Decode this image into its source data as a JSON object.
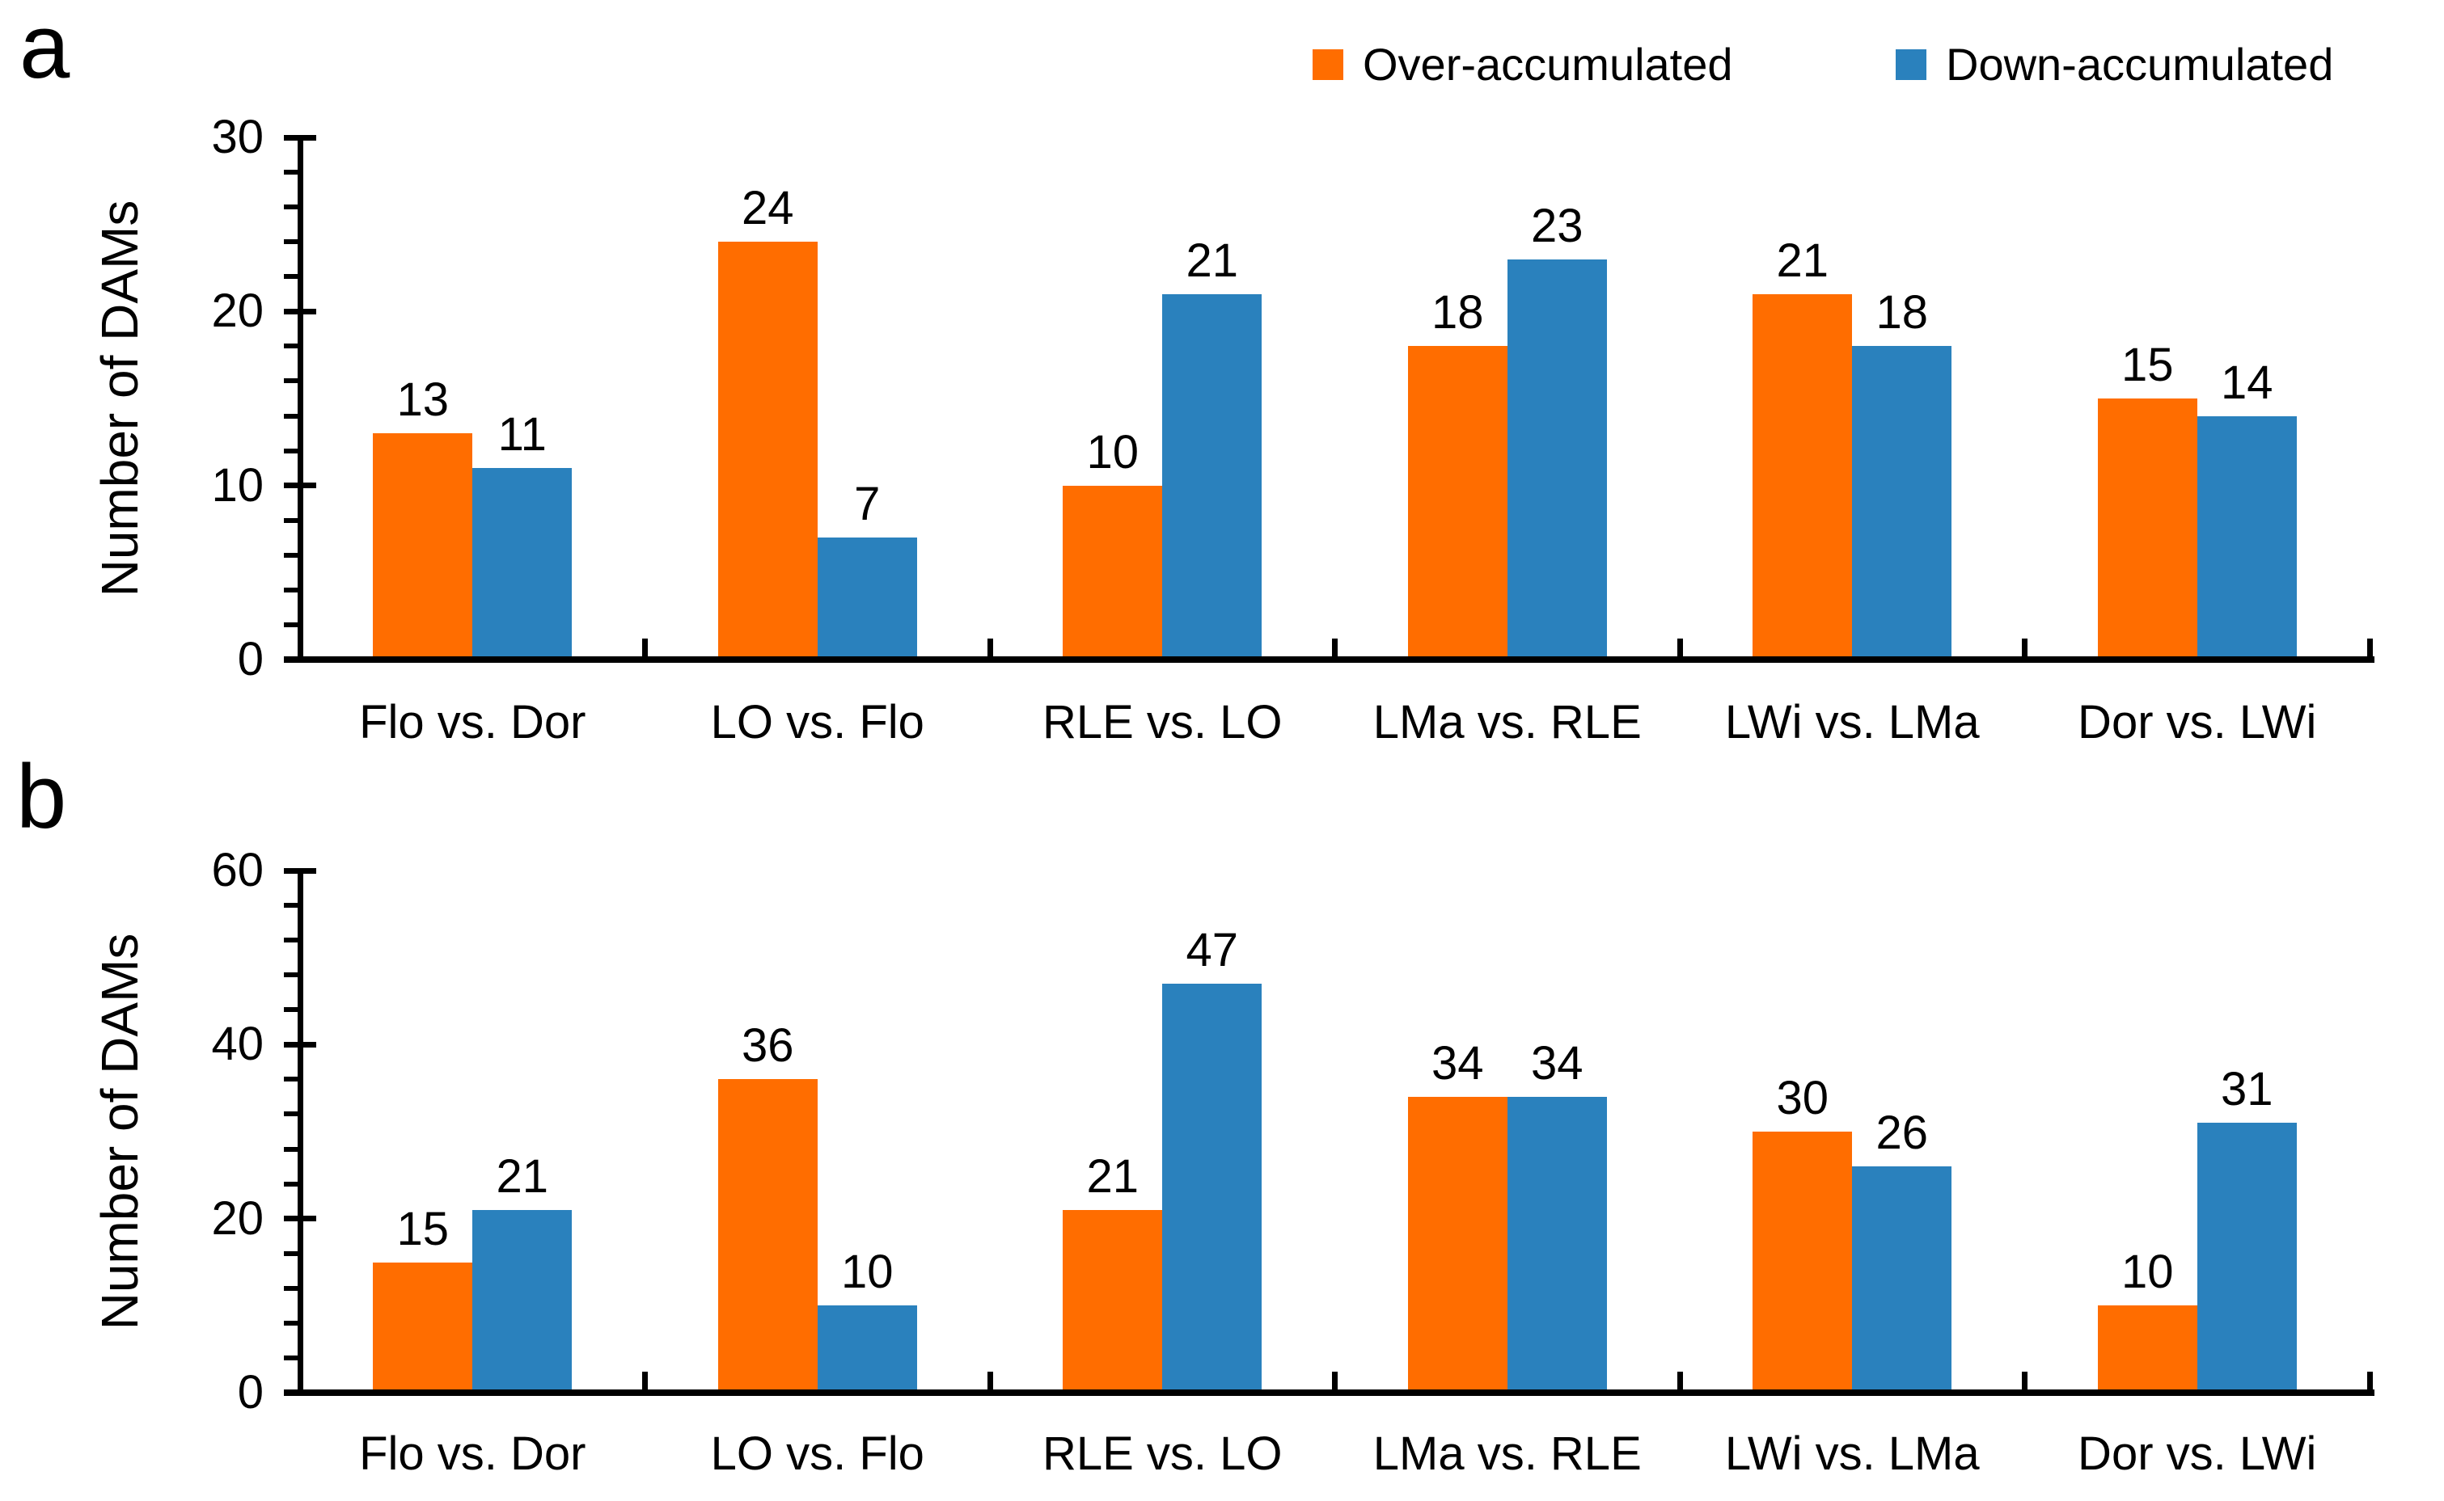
{
  "panels": [
    {
      "letter": "a"
    },
    {
      "letter": "b"
    }
  ],
  "legend": {
    "items": [
      {
        "label": "Over-accumulated",
        "color": "#FF6D00"
      },
      {
        "label": "Down-accumulated",
        "color": "#2A81BD"
      }
    ]
  },
  "chart_data": [
    {
      "id": "panel-a",
      "type": "bar",
      "title": "",
      "xlabel": "",
      "ylabel": "Number of DAMs",
      "categories": [
        "Flo vs. Dor",
        "LO vs. Flo",
        "RLE vs. LO",
        "LMa vs. RLE",
        "LWi vs. LMa",
        "Dor vs. LWi"
      ],
      "series": [
        {
          "name": "Over-accumulated",
          "color": "#FF6D00",
          "values": [
            13,
            24,
            10,
            18,
            21,
            15
          ]
        },
        {
          "name": "Down-accumulated",
          "color": "#2A81BD",
          "values": [
            11,
            7,
            21,
            23,
            18,
            14
          ]
        }
      ],
      "ylim": [
        0,
        30
      ],
      "y_major_ticks": [
        0,
        10,
        20,
        30
      ],
      "y_minor_interval": 2,
      "grid": false,
      "data_labels": true,
      "legend_position": "top-right"
    },
    {
      "id": "panel-b",
      "type": "bar",
      "title": "",
      "xlabel": "",
      "ylabel": "Number of DAMs",
      "categories": [
        "Flo vs. Dor",
        "LO vs. Flo",
        "RLE vs. LO",
        "LMa vs. RLE",
        "LWi vs. LMa",
        "Dor vs. LWi"
      ],
      "series": [
        {
          "name": "Over-accumulated",
          "color": "#FF6D00",
          "values": [
            15,
            36,
            21,
            34,
            30,
            10
          ]
        },
        {
          "name": "Down-accumulated",
          "color": "#2A81BD",
          "values": [
            21,
            10,
            47,
            34,
            26,
            31
          ]
        }
      ],
      "ylim": [
        0,
        60
      ],
      "y_major_ticks": [
        0,
        20,
        40,
        60
      ],
      "y_minor_interval": 4,
      "grid": false,
      "data_labels": true,
      "legend_position": "top-right"
    }
  ]
}
